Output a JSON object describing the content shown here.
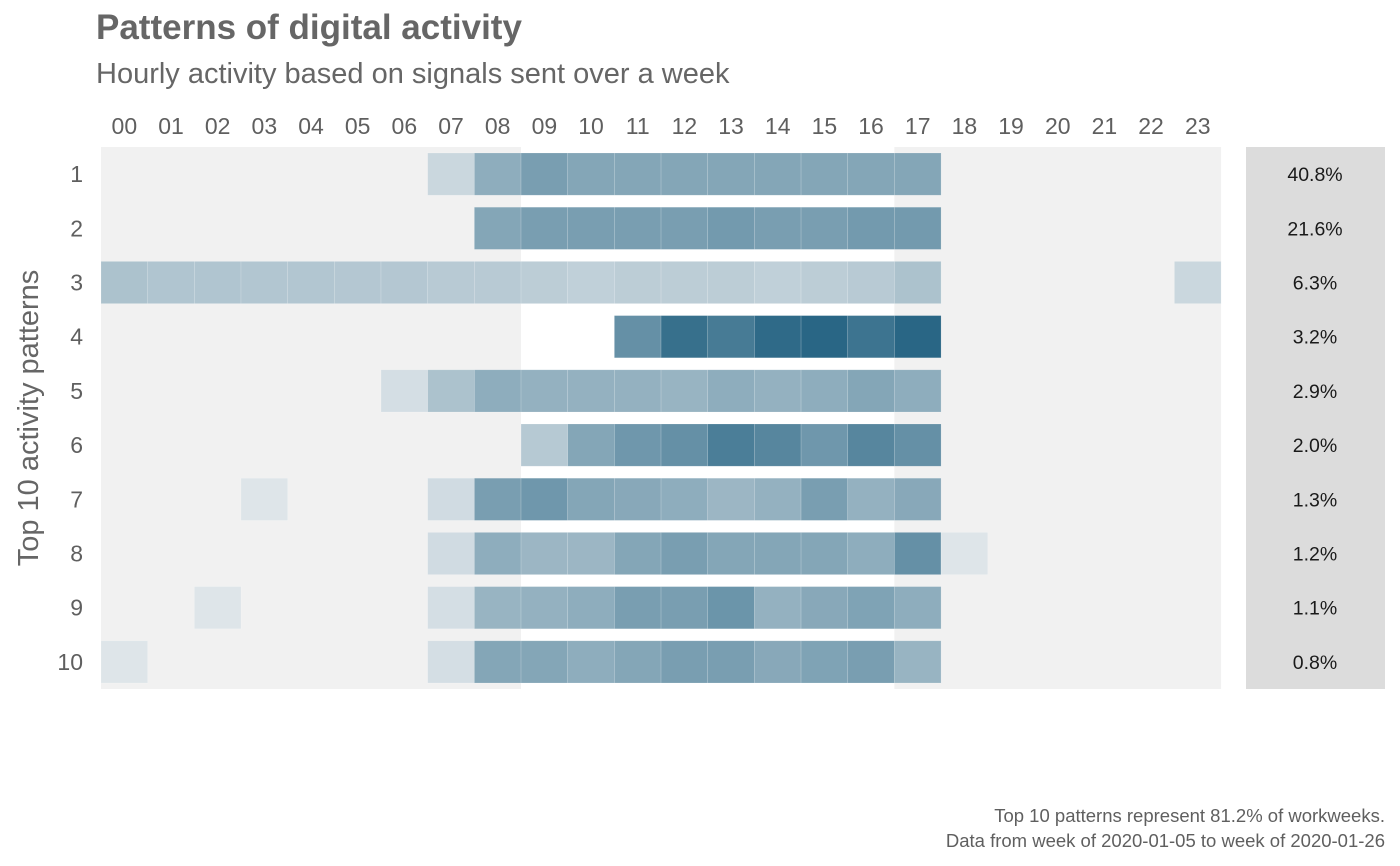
{
  "title": "Patterns of digital activity",
  "subtitle": "Hourly activity based on signals sent over a week",
  "caption": {
    "line1": "Top 10 patterns represent 81.2% of workweeks.",
    "line2": "Data from week of 2020-01-05 to week of 2020-01-26"
  },
  "colors": {
    "high": "#1f5f7f",
    "low": "#e8ecef",
    "off_hours_band": "#f1f1f1",
    "share_panel": "#dcdcdc"
  },
  "chart_data": {
    "type": "heatmap",
    "xlabel": "",
    "ylabel": "Top 10 activity patterns",
    "hours": [
      "00",
      "01",
      "02",
      "03",
      "04",
      "05",
      "06",
      "07",
      "08",
      "09",
      "10",
      "11",
      "12",
      "13",
      "14",
      "15",
      "16",
      "17",
      "18",
      "19",
      "20",
      "21",
      "22",
      "23"
    ],
    "working_hours": [
      "09",
      "10",
      "11",
      "12",
      "13",
      "14",
      "15",
      "16"
    ],
    "patterns": [
      "1",
      "2",
      "3",
      "4",
      "5",
      "6",
      "7",
      "8",
      "9",
      "10"
    ],
    "shares": [
      "40.8%",
      "21.6%",
      "6.3%",
      "3.2%",
      "2.9%",
      "2.0%",
      "1.3%",
      "1.2%",
      "1.1%",
      "0.8%"
    ],
    "intensity": [
      [
        0,
        0,
        0,
        0,
        0,
        0,
        0,
        0.15,
        0.45,
        0.55,
        0.5,
        0.5,
        0.5,
        0.5,
        0.5,
        0.5,
        0.5,
        0.5,
        0,
        0,
        0,
        0,
        0,
        0
      ],
      [
        0,
        0,
        0,
        0,
        0,
        0,
        0,
        0,
        0.5,
        0.55,
        0.55,
        0.55,
        0.55,
        0.58,
        0.55,
        0.55,
        0.58,
        0.58,
        0,
        0,
        0,
        0,
        0,
        0
      ],
      [
        0.3,
        0.28,
        0.28,
        0.27,
        0.27,
        0.26,
        0.26,
        0.24,
        0.24,
        0.22,
        0.2,
        0.22,
        0.22,
        0.22,
        0.2,
        0.22,
        0.24,
        0.3,
        0,
        0,
        0,
        0,
        0,
        0.15
      ],
      [
        0,
        0,
        0,
        0,
        0,
        0,
        0,
        0,
        0,
        0,
        0,
        0.65,
        0.88,
        0.8,
        0.92,
        0.95,
        0.85,
        0.95,
        0,
        0,
        0,
        0,
        0,
        0
      ],
      [
        0,
        0,
        0,
        0,
        0,
        0,
        0.1,
        0.3,
        0.45,
        0.42,
        0.42,
        0.42,
        0.4,
        0.45,
        0.42,
        0.45,
        0.5,
        0.45,
        0,
        0,
        0,
        0,
        0,
        0
      ],
      [
        0,
        0,
        0,
        0,
        0,
        0,
        0,
        0,
        0,
        0.25,
        0.5,
        0.6,
        0.65,
        0.78,
        0.72,
        0.6,
        0.72,
        0.65,
        0,
        0,
        0,
        0,
        0,
        0
      ],
      [
        0,
        0,
        0,
        0.05,
        0,
        0,
        0,
        0.12,
        0.55,
        0.6,
        0.5,
        0.48,
        0.45,
        0.38,
        0.42,
        0.55,
        0.42,
        0.48,
        0,
        0,
        0,
        0,
        0,
        0
      ],
      [
        0,
        0,
        0,
        0,
        0,
        0,
        0,
        0.12,
        0.45,
        0.38,
        0.38,
        0.5,
        0.55,
        0.5,
        0.5,
        0.5,
        0.45,
        0.65,
        0.05,
        0,
        0,
        0,
        0,
        0
      ],
      [
        0,
        0,
        0.05,
        0,
        0,
        0,
        0,
        0.1,
        0.4,
        0.42,
        0.45,
        0.55,
        0.55,
        0.62,
        0.42,
        0.48,
        0.52,
        0.45,
        0,
        0,
        0,
        0,
        0,
        0
      ],
      [
        0.05,
        0,
        0,
        0,
        0,
        0,
        0,
        0.1,
        0.5,
        0.5,
        0.45,
        0.5,
        0.55,
        0.55,
        0.48,
        0.52,
        0.55,
        0.4,
        0,
        0,
        0,
        0,
        0,
        0
      ]
    ]
  }
}
